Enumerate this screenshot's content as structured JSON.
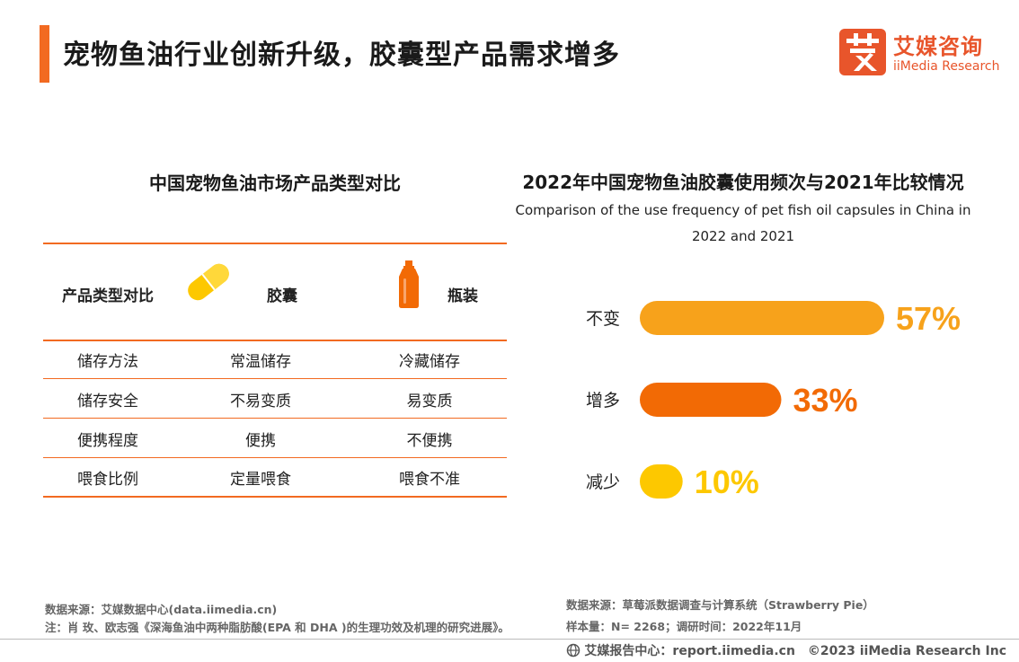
{
  "header": {
    "title": "宠物鱼油行业创新升级，胶囊型产品需求增多",
    "logo_cn": "艾媒咨询",
    "logo_en": "iiMedia Research",
    "logo_glyph": "艾",
    "accent_color": "#f26a21"
  },
  "left": {
    "title": "中国宠物鱼油市场产品类型对比",
    "header_row": {
      "label": "产品类型对比",
      "col1": "胶囊",
      "col2": "瓶装",
      "col1_icon": "capsule-icon",
      "col2_icon": "bottle-icon"
    },
    "rows": [
      {
        "label": "储存方法",
        "col1": "常温储存",
        "col2": "冷藏储存"
      },
      {
        "label": "储存安全",
        "col1": "不易变质",
        "col2": "易变质"
      },
      {
        "label": "便携程度",
        "col1": "便携",
        "col2": "不便携"
      },
      {
        "label": "喂食比例",
        "col1": "定量喂食",
        "col2": "喂食不准"
      }
    ]
  },
  "chart_data": {
    "type": "bar",
    "orientation": "horizontal",
    "title": "2022年中国宠物鱼油胶囊使用频次与2021年比较情况",
    "subtitle_line1": "Comparison of the use frequency of pet fish oil capsules in China in",
    "subtitle_line2": "2022 and 2021",
    "categories": [
      "不变",
      "增多",
      "减少"
    ],
    "values": [
      57,
      33,
      10
    ],
    "value_labels": [
      "57%",
      "33%",
      "10%"
    ],
    "colors": [
      "#f7a21b",
      "#f26a05",
      "#fdc800"
    ],
    "xlim": [
      0,
      57
    ],
    "grid": false
  },
  "footer": {
    "source_left": "数据来源：艾媒数据中心(data.iimedia.cn)",
    "note": "注：肖 玫、欧志强《深海鱼油中两种脂肪酸(EPA 和 DHA )的生理功效及机理的研究进展》。",
    "source_right": "数据来源：草莓派数据调查与计算系统（Strawberry Pie）",
    "sample": "样本量：N= 2268；调研时间：2022年11月",
    "report_center": "艾媒报告中心：report.iimedia.cn",
    "copyright": "©2023  iiMedia Research Inc"
  }
}
